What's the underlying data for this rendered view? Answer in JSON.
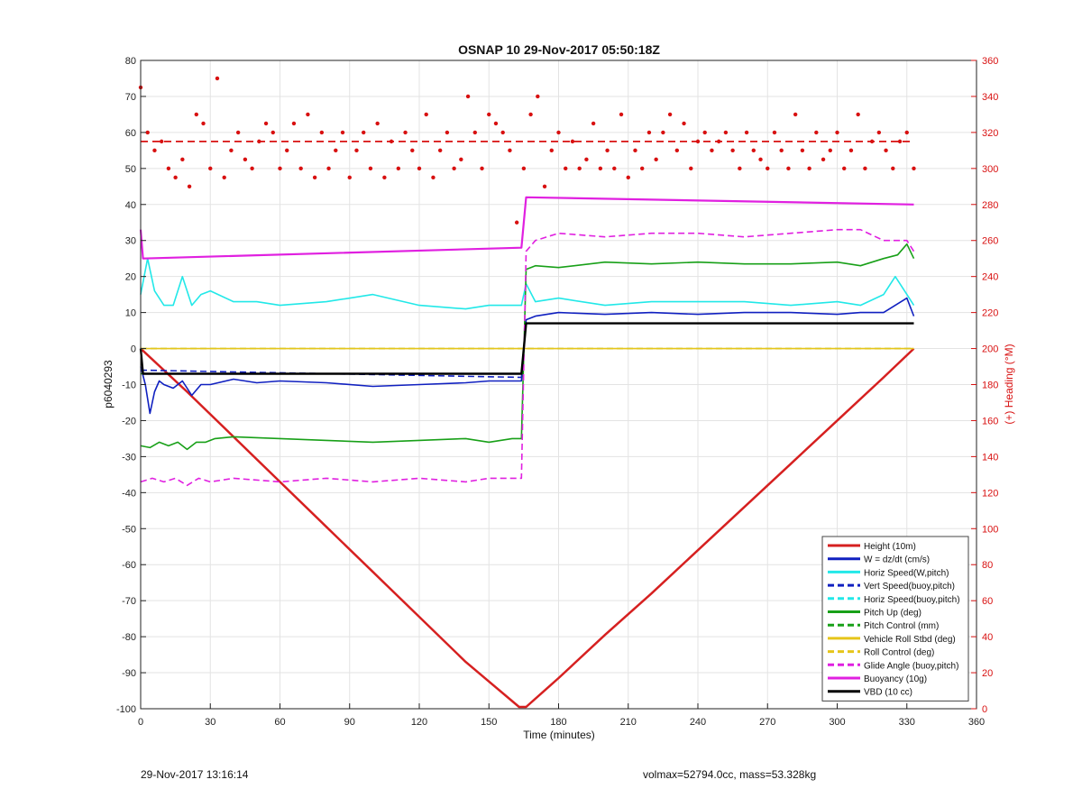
{
  "chart_data": {
    "type": "line",
    "title": "OSNAP 10 29-Nov-2017 05:50:18Z",
    "xlabel": "Time (minutes)",
    "ylabel": "p6040293",
    "y2label": "(+) Heading (°M)",
    "xlim": [
      0,
      360
    ],
    "ylim": [
      -100,
      80
    ],
    "y2lim": [
      0,
      360
    ],
    "xticks": [
      0,
      30,
      60,
      90,
      120,
      150,
      180,
      210,
      240,
      270,
      300,
      330,
      360
    ],
    "yticks": [
      -100,
      -90,
      -80,
      -70,
      -60,
      -50,
      -40,
      -30,
      -20,
      -10,
      0,
      10,
      20,
      30,
      40,
      50,
      60,
      70,
      80
    ],
    "y2ticks": [
      0,
      20,
      40,
      60,
      80,
      100,
      120,
      140,
      160,
      180,
      200,
      220,
      240,
      260,
      280,
      300,
      320,
      340,
      360
    ],
    "grid": true,
    "legend_position": "bottom-right",
    "series": [
      {
        "name": "Height (10m)",
        "color": "#d62020",
        "style": "solid",
        "width": 2.5,
        "x": [
          0,
          20,
          40,
          60,
          80,
          100,
          120,
          140,
          163,
          166,
          180,
          200,
          220,
          240,
          260,
          280,
          300,
          320,
          333
        ],
        "y": [
          0,
          -12,
          -24.5,
          -37,
          -49.5,
          -62,
          -74.5,
          -87,
          -99.5,
          -99.5,
          -91.5,
          -79.5,
          -68,
          -56,
          -44,
          -32,
          -20,
          -8,
          0
        ]
      },
      {
        "name": "W = dz/dt (cm/s)",
        "color": "#1020c0",
        "style": "solid",
        "width": 1.6,
        "x": [
          0,
          2,
          4,
          6,
          8,
          10,
          14,
          18,
          22,
          26,
          30,
          40,
          50,
          60,
          80,
          100,
          120,
          140,
          150,
          160,
          164,
          166,
          170,
          180,
          200,
          220,
          240,
          260,
          280,
          300,
          310,
          320,
          325,
          330,
          333
        ],
        "y": [
          -5,
          -10,
          -18,
          -12,
          -9,
          -10,
          -11,
          -9,
          -13,
          -10,
          -10,
          -8.5,
          -9.5,
          -9,
          -9.5,
          -10.5,
          -10,
          -9.5,
          -9,
          -9,
          -9,
          8,
          9,
          10,
          9.5,
          10,
          9.5,
          10,
          10,
          9.5,
          10,
          10,
          12,
          14,
          9
        ]
      },
      {
        "name": "Horiz Speed(W,pitch)",
        "color": "#22e8e8",
        "style": "solid",
        "width": 1.6,
        "x": [
          0,
          3,
          6,
          10,
          14,
          18,
          22,
          26,
          30,
          40,
          50,
          60,
          80,
          100,
          120,
          140,
          150,
          160,
          164,
          166,
          170,
          180,
          200,
          220,
          240,
          260,
          280,
          300,
          310,
          320,
          325,
          330,
          333
        ],
        "y": [
          15,
          25,
          16,
          12,
          12,
          20,
          12,
          15,
          16,
          13,
          13,
          12,
          13,
          15,
          12,
          11,
          12,
          12,
          12,
          18,
          13,
          14,
          12,
          13,
          13,
          13,
          12,
          13,
          12,
          15,
          20,
          15,
          12
        ]
      },
      {
        "name": "Vert Speed(buoy,pitch)",
        "color": "#1020c0",
        "style": "dashed",
        "width": 1.6,
        "x": [
          0,
          164,
          166,
          333
        ],
        "y": [
          -6,
          -8,
          7,
          7
        ]
      },
      {
        "name": "Horiz Speed(buoy,pitch)",
        "color": "#22e8e8",
        "style": "dashed",
        "width": 1.6,
        "x": [
          0,
          164,
          166,
          333
        ],
        "y": [
          0,
          0,
          0,
          0
        ]
      },
      {
        "name": "Pitch Up (deg)",
        "color": "#18a018",
        "style": "solid",
        "width": 1.6,
        "x": [
          0,
          4,
          8,
          12,
          16,
          20,
          24,
          28,
          32,
          40,
          60,
          80,
          100,
          120,
          140,
          150,
          160,
          164,
          166,
          170,
          180,
          200,
          220,
          240,
          260,
          280,
          300,
          310,
          320,
          326,
          330,
          333
        ],
        "y": [
          -27,
          -27.5,
          -26,
          -27,
          -26,
          -28,
          -26,
          -26,
          -25,
          -24.5,
          -25,
          -25.5,
          -26,
          -25.5,
          -25,
          -26,
          -25,
          -25,
          22,
          23,
          22.5,
          24,
          23.5,
          24,
          23.5,
          23.5,
          24,
          23,
          25,
          26,
          29,
          25
        ]
      },
      {
        "name": "Pitch Control (mm)",
        "color": "#18a018",
        "style": "dashed",
        "width": 1.6,
        "x": [
          0,
          164,
          166,
          333
        ],
        "y": [
          -7,
          -7,
          7,
          7
        ]
      },
      {
        "name": "Vehicle Roll Stbd (deg)",
        "color": "#e6c51a",
        "style": "solid",
        "width": 1.6,
        "x": [
          0,
          333
        ],
        "y": [
          0,
          0
        ]
      },
      {
        "name": "Roll Control (deg)",
        "color": "#e6c51a",
        "style": "dashed",
        "width": 1.6,
        "x": [
          0,
          333
        ],
        "y": [
          0,
          0
        ]
      },
      {
        "name": "Glide Angle (buoy,pitch)",
        "color": "#e020e0",
        "style": "dashed",
        "width": 1.6,
        "x": [
          0,
          5,
          10,
          15,
          20,
          25,
          30,
          40,
          60,
          80,
          100,
          120,
          140,
          150,
          160,
          164,
          166,
          170,
          180,
          200,
          220,
          240,
          260,
          280,
          300,
          310,
          320,
          330,
          333
        ],
        "y": [
          -37,
          -36,
          -37,
          -36,
          -38,
          -36,
          -37,
          -36,
          -37,
          -36,
          -37,
          -36,
          -37,
          -36,
          -36,
          -36,
          27,
          30,
          32,
          31,
          32,
          32,
          31,
          32,
          33,
          33,
          30,
          30,
          27
        ]
      },
      {
        "name": "Buoyancy (10g)",
        "color": "#e020e0",
        "style": "solid",
        "width": 2.2,
        "x": [
          0,
          1,
          164,
          166,
          333
        ],
        "y": [
          33,
          25,
          28,
          42,
          40
        ]
      },
      {
        "name": "VBD (10 cc)",
        "color": "#000000",
        "style": "solid",
        "width": 2.4,
        "x": [
          0,
          1,
          164,
          166,
          333
        ],
        "y": [
          0,
          -7,
          -7,
          7,
          7
        ]
      }
    ],
    "heading_scatter": {
      "color": "#d81010",
      "axis": "right",
      "x": [
        0,
        3,
        6,
        9,
        12,
        15,
        18,
        21,
        24,
        27,
        30,
        33,
        36,
        39,
        42,
        45,
        48,
        51,
        54,
        57,
        60,
        63,
        66,
        69,
        72,
        75,
        78,
        81,
        84,
        87,
        90,
        93,
        96,
        99,
        102,
        105,
        108,
        111,
        114,
        117,
        120,
        123,
        126,
        129,
        132,
        135,
        138,
        141,
        144,
        147,
        150,
        153,
        156,
        159,
        162,
        165,
        168,
        171,
        174,
        177,
        180,
        183,
        186,
        189,
        192,
        195,
        198,
        201,
        204,
        207,
        210,
        213,
        216,
        219,
        222,
        225,
        228,
        231,
        234,
        237,
        240,
        243,
        246,
        249,
        252,
        255,
        258,
        261,
        264,
        267,
        270,
        273,
        276,
        279,
        282,
        285,
        288,
        291,
        294,
        297,
        300,
        303,
        306,
        309,
        312,
        315,
        318,
        321,
        324,
        327,
        330,
        333
      ],
      "y": [
        345,
        320,
        310,
        315,
        300,
        295,
        305,
        290,
        330,
        325,
        300,
        350,
        295,
        310,
        320,
        305,
        300,
        315,
        325,
        320,
        300,
        310,
        325,
        300,
        330,
        295,
        320,
        300,
        310,
        320,
        295,
        310,
        320,
        300,
        325,
        295,
        315,
        300,
        320,
        310,
        300,
        330,
        295,
        310,
        320,
        300,
        305,
        340,
        320,
        300,
        330,
        325,
        320,
        310,
        270,
        300,
        330,
        340,
        290,
        310,
        320,
        300,
        315,
        300,
        305,
        325,
        300,
        310,
        300,
        330,
        295,
        310,
        300,
        320,
        305,
        320,
        330,
        310,
        325,
        300,
        315,
        320,
        310,
        315,
        320,
        310,
        300,
        320,
        310,
        305,
        300,
        320,
        310,
        300,
        330,
        310,
        300,
        320,
        305,
        310,
        320,
        300,
        310,
        330,
        300,
        315,
        320,
        310,
        300,
        315,
        320,
        300
      ]
    },
    "heading_mean": 315,
    "footer_left": "29-Nov-2017 13:16:14",
    "footer_right": "volmax=52794.0cc, mass=53.328kg"
  }
}
